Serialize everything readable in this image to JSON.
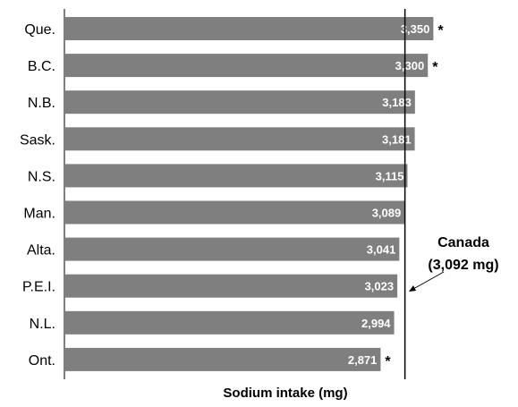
{
  "chart_data": {
    "type": "bar",
    "orientation": "horizontal",
    "categories": [
      "Que.",
      "B.C.",
      "N.B.",
      "Sask.",
      "N.S.",
      "Man.",
      "Alta.",
      "P.E.I.",
      "N.L.",
      "Ont."
    ],
    "values": [
      3350,
      3300,
      3183,
      3181,
      3115,
      3089,
      3041,
      3023,
      2994,
      2871
    ],
    "value_labels": [
      "3,350",
      "3,300",
      "3,183",
      "3,181",
      "3,115",
      "3,089",
      "3,041",
      "3,023",
      "2,994",
      "2,871"
    ],
    "markers": [
      "*",
      "*",
      "",
      "",
      "",
      "",
      "",
      "",
      "",
      "*"
    ],
    "xlabel": "Sodium intake (mg)",
    "ylabel": "",
    "reference_line": {
      "value": 3092,
      "label_line1": "Canada",
      "label_line2": "(3,092 mg)"
    },
    "bar_color": "#7f7f7f",
    "grid": false
  }
}
